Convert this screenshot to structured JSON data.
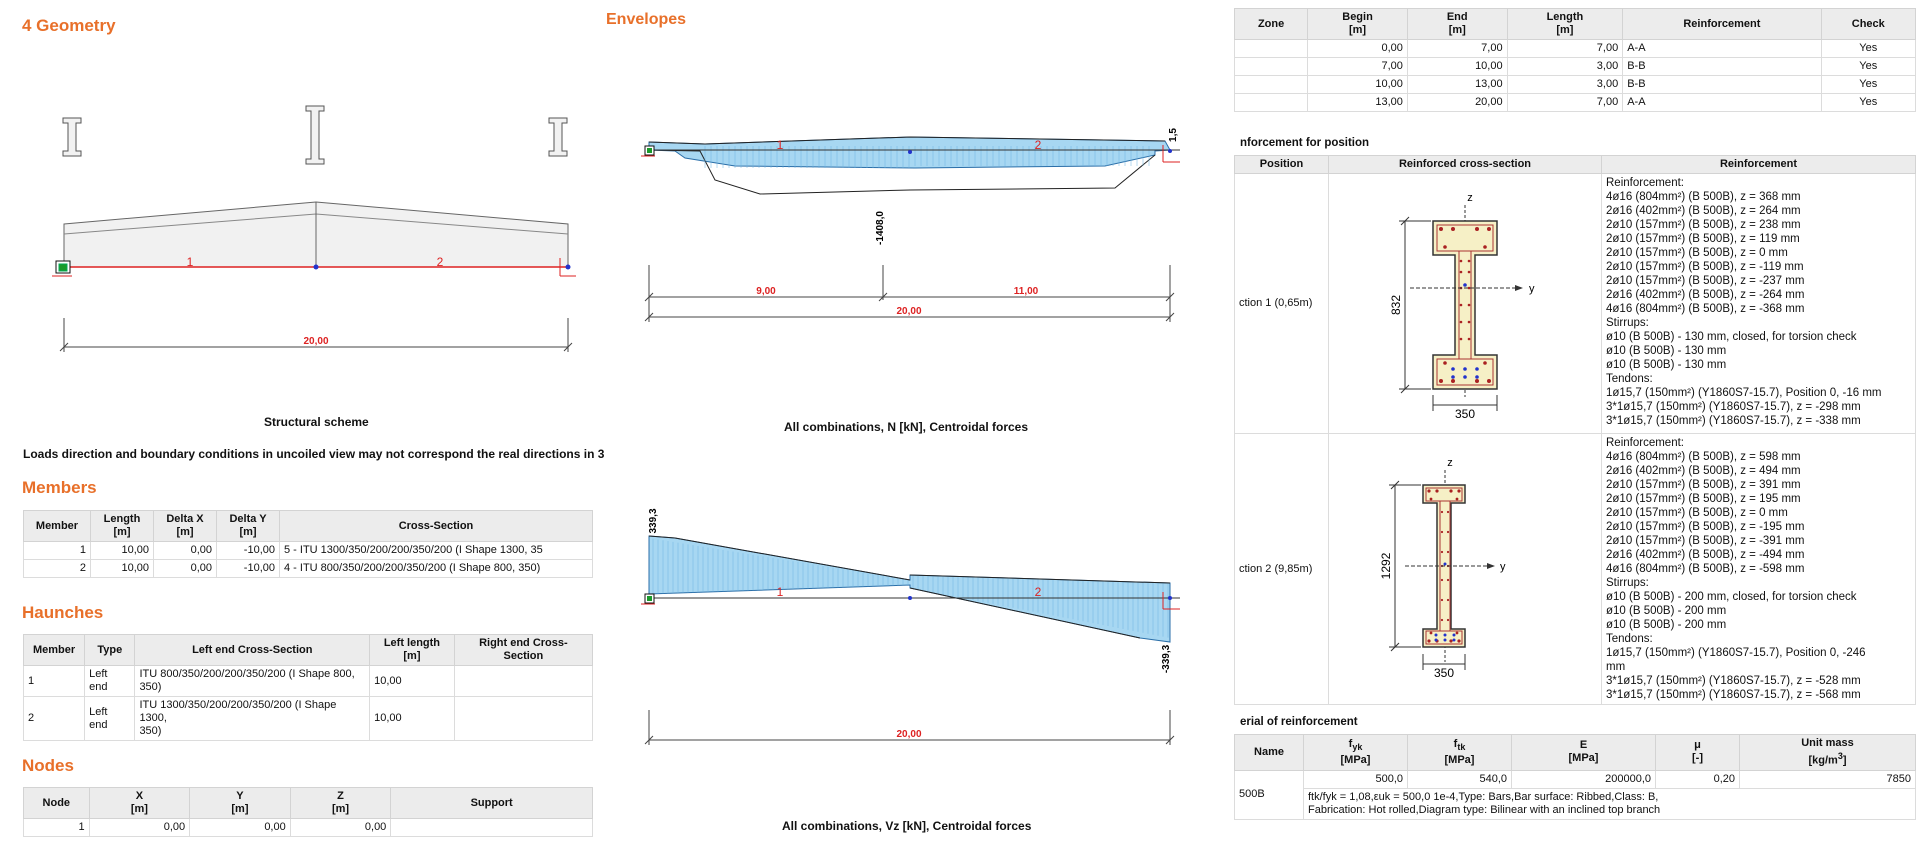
{
  "geometry": {
    "title": "4 Geometry",
    "scheme_caption": "Structural scheme",
    "member_labels": [
      "1",
      "2"
    ],
    "span_total": "20,00",
    "note": "Loads direction and boundary conditions in uncoiled view may not correspond the real directions in 3"
  },
  "members": {
    "title": "Members",
    "headers": [
      "Member",
      "Length\n[m]",
      "Delta X\n[m]",
      "Delta Y\n[m]",
      "Cross-Section"
    ],
    "rows": [
      [
        "1",
        "10,00",
        "0,00",
        "-10,00",
        "5 - ITU 1300/350/200/200/350/200 (I Shape 1300, 35"
      ],
      [
        "2",
        "10,00",
        "0,00",
        "-10,00",
        "4 - ITU 800/350/200/200/350/200 (I Shape 800, 350)"
      ]
    ]
  },
  "haunches": {
    "title": "Haunches",
    "headers": [
      "Member",
      "Type",
      "Left end Cross-Section",
      "Left length\n[m]",
      "Right end Cross-\nSection"
    ],
    "rows": [
      [
        "1",
        "Left\nend",
        "ITU 800/350/200/200/350/200 (I Shape 800,\n350)",
        "10,00",
        ""
      ],
      [
        "2",
        "Left\nend",
        "ITU 1300/350/200/200/350/200 (I Shape 1300,\n350)",
        "10,00",
        ""
      ]
    ]
  },
  "nodes": {
    "title": "Nodes",
    "headers": [
      "Node",
      "X\n[m]",
      "Y\n[m]",
      "Z\n[m]",
      "Support"
    ],
    "rows": [
      [
        "1",
        "0,00",
        "0,00",
        "0,00",
        ""
      ]
    ]
  },
  "envelopes": {
    "title": "Envelopes",
    "n_chart": {
      "caption": "All combinations, N [kN], Centroidal forces",
      "min_label": "-1408,0",
      "end_label": "1,5",
      "member_labels": [
        "1",
        "2"
      ],
      "dims": [
        "9,00",
        "11,00"
      ],
      "total": "20,00"
    },
    "vz_chart": {
      "caption": "All combinations, Vz [kN], Centroidal forces",
      "max_label": "339,3",
      "min_label": "-339,3",
      "member_labels": [
        "1",
        "2"
      ],
      "total": "20,00"
    }
  },
  "zones": {
    "headers": [
      "Zone",
      "Begin\n[m]",
      "End\n[m]",
      "Length\n[m]",
      "Reinforcement",
      "Check"
    ],
    "rows": [
      [
        "",
        "0,00",
        "7,00",
        "7,00",
        "A-A",
        "Yes"
      ],
      [
        "",
        "7,00",
        "10,00",
        "3,00",
        "B-B",
        "Yes"
      ],
      [
        "",
        "10,00",
        "13,00",
        "3,00",
        "B-B",
        "Yes"
      ],
      [
        "",
        "13,00",
        "20,00",
        "7,00",
        "A-A",
        "Yes"
      ]
    ]
  },
  "reinforcement_for_position": {
    "title": "nforcement for position",
    "headers": [
      "Position",
      "Reinforced cross-section",
      "Reinforcement"
    ],
    "rows": [
      {
        "position": "ction 1 (0,65m)",
        "height_label": "832",
        "width_label": "350",
        "lines": [
          "Reinforcement:",
          "4ø16 (804mm²) (B 500B), z = 368 mm",
          "2ø16 (402mm²) (B 500B), z = 264 mm",
          "2ø10 (157mm²) (B 500B), z = 238 mm",
          "2ø10 (157mm²) (B 500B), z = 119 mm",
          "2ø10 (157mm²) (B 500B), z = 0 mm",
          "2ø10 (157mm²) (B 500B), z = -119 mm",
          "2ø10 (157mm²) (B 500B), z = -237 mm",
          "2ø16 (402mm²) (B 500B), z = -264 mm",
          "4ø16 (804mm²) (B 500B), z = -368 mm",
          "Stirrups:",
          "ø10 (B 500B) - 130 mm, closed, for torsion check",
          "ø10 (B 500B) - 130 mm",
          "ø10 (B 500B) - 130 mm",
          "Tendons:",
          "1ø15,7 (150mm²) (Y1860S7-15.7), Position 0, -16 mm",
          "3*1ø15,7 (150mm²) (Y1860S7-15.7), z = -298 mm",
          "3*1ø15,7 (150mm²) (Y1860S7-15.7), z = -338 mm"
        ]
      },
      {
        "position": "ction 2 (9,85m)",
        "height_label": "1292",
        "width_label": "350",
        "lines": [
          "Reinforcement:",
          "4ø16 (804mm²) (B 500B), z = 598 mm",
          "2ø16 (402mm²) (B 500B), z = 494 mm",
          "2ø10 (157mm²) (B 500B), z = 391 mm",
          "2ø10 (157mm²) (B 500B), z = 195 mm",
          "2ø10 (157mm²) (B 500B), z = 0 mm",
          "2ø10 (157mm²) (B 500B), z = -195 mm",
          "2ø10 (157mm²) (B 500B), z = -391 mm",
          "2ø16 (402mm²) (B 500B), z = -494 mm",
          "4ø16 (804mm²) (B 500B), z = -598 mm",
          "Stirrups:",
          "ø10 (B 500B) - 200 mm, closed, for torsion check",
          "ø10 (B 500B) - 200 mm",
          "ø10 (B 500B) - 200 mm",
          "Tendons:",
          "1ø15,7 (150mm²) (Y1860S7-15.7), Position 0, -246",
          "mm",
          "3*1ø15,7 (150mm²) (Y1860S7-15.7), z = -528 mm",
          "3*1ø15,7 (150mm²) (Y1860S7-15.7), z = -568 mm"
        ]
      }
    ]
  },
  "material": {
    "title": "erial of reinforcement",
    "headers": [
      "Name",
      "fyk\n[MPa]",
      "ftk\n[MPa]",
      "E\n[MPa]",
      "μ\n[-]",
      "Unit mass\n[kg/m3]"
    ],
    "row": [
      "500,0",
      "540,0",
      "200000,0",
      "0,20",
      "7850"
    ],
    "name": "500B",
    "detail_line1": "ftk/fyk = 1,08,εuk = 500,0 1e-4,Type: Bars,Bar surface: Ribbed,Class: B,",
    "detail_line2": "Fabrication: Hot rolled,Diagram type: Bilinear with an inclined top branch"
  }
}
